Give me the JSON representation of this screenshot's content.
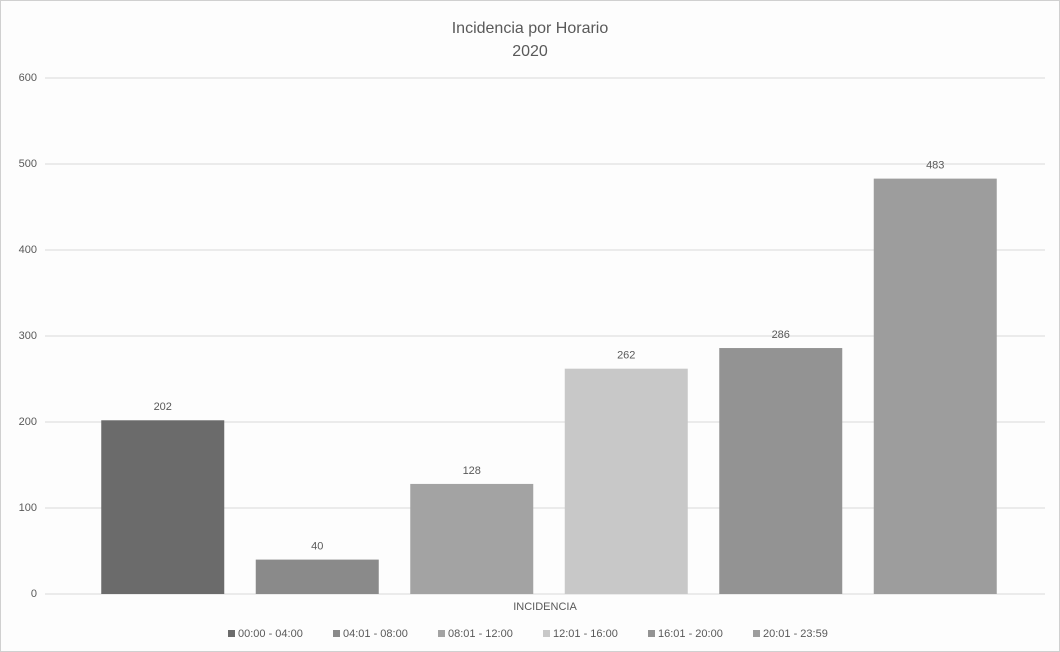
{
  "chart_data": {
    "type": "bar",
    "title": "Incidencia por Horario",
    "subtitle": "2020",
    "categories": [
      "INCIDENCIA"
    ],
    "series": [
      {
        "name": "00:00 - 04:00",
        "color": "#6b6b6b",
        "values": [
          202
        ]
      },
      {
        "name": "04:01 - 08:00",
        "color": "#8a8a8a",
        "values": [
          40
        ]
      },
      {
        "name": "08:01 - 12:00",
        "color": "#a3a3a3",
        "values": [
          128
        ]
      },
      {
        "name": "12:01 - 16:00",
        "color": "#c8c8c8",
        "values": [
          262
        ]
      },
      {
        "name": "16:01 - 20:00",
        "color": "#939393",
        "values": [
          286
        ]
      },
      {
        "name": "20:01 - 23:59",
        "color": "#9d9d9d",
        "values": [
          483
        ]
      }
    ],
    "ylim": [
      0,
      600
    ],
    "yticks": [
      0,
      100,
      200,
      300,
      400,
      500,
      600
    ],
    "grid": true,
    "legend": "bottom"
  }
}
